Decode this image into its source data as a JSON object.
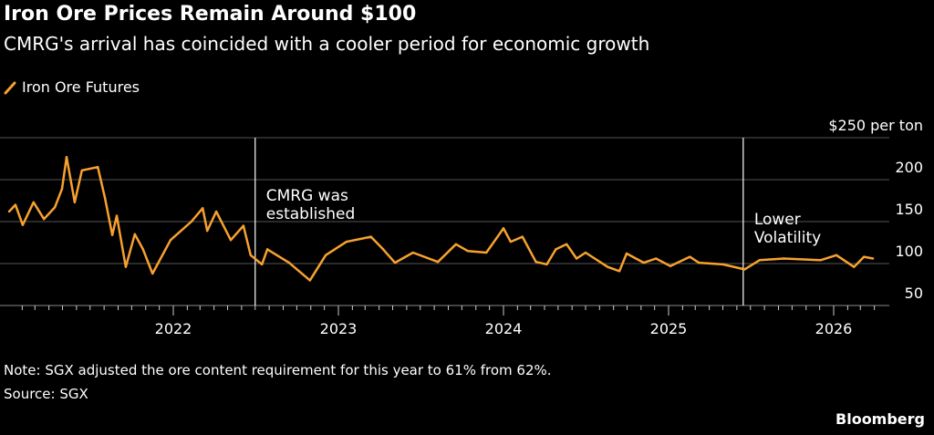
{
  "title": "Iron Ore Prices Remain Around $100",
  "subtitle": "CMRG's arrival has coincided with a cooler period for economic growth",
  "note": "Note: SGX adjusted the ore content requirement for this year to 61% from 62%.",
  "source": "Source: SGX",
  "brand": "Bloomberg",
  "chart_data": {
    "type": "line",
    "title": "Iron Ore Prices Remain Around $100",
    "xlabel": "",
    "ylabel": "",
    "y_unit_label": "$250 per ton",
    "ylim": [
      50,
      250
    ],
    "yticks": [
      50,
      100,
      150,
      200,
      250
    ],
    "ytick_labels": [
      "50",
      "100",
      "150",
      "200",
      "$250 per ton"
    ],
    "xlim": [
      "2021-01-01",
      "2026-04-30"
    ],
    "xtick_labels": [
      "2022",
      "2023",
      "2024",
      "2025",
      "2026"
    ],
    "grid": true,
    "legend": "top-left",
    "colors": {
      "line": "#f7a12f",
      "background": "#000000",
      "grid": "#555555",
      "annotation_line": "#ffffff"
    },
    "series": [
      {
        "name": "Iron Ore Futures",
        "x": [
          "2021-01-03",
          "2021-01-17",
          "2021-02-02",
          "2021-02-26",
          "2021-03-21",
          "2021-04-14",
          "2021-04-30",
          "2021-05-10",
          "2021-05-28",
          "2021-06-13",
          "2021-07-18",
          "2021-08-03",
          "2021-08-19",
          "2021-08-29",
          "2021-09-18",
          "2021-10-08",
          "2021-10-26",
          "2021-11-16",
          "2021-12-26",
          "2022-02-10",
          "2022-03-07",
          "2022-03-17",
          "2022-04-06",
          "2022-05-08",
          "2022-06-05",
          "2022-06-21",
          "2022-07-16",
          "2022-07-28",
          "2022-09-14",
          "2022-10-30",
          "2022-12-04",
          "2023-01-19",
          "2023-03-14",
          "2023-04-10",
          "2023-05-06",
          "2023-06-15",
          "2023-08-09",
          "2023-09-18",
          "2023-10-14",
          "2023-11-24",
          "2024-01-01",
          "2024-01-17",
          "2024-02-12",
          "2024-03-13",
          "2024-04-06",
          "2024-04-26",
          "2024-05-20",
          "2024-06-11",
          "2024-07-01",
          "2024-08-19",
          "2024-09-14",
          "2024-09-30",
          "2024-11-07",
          "2024-12-04",
          "2025-01-05",
          "2025-02-17",
          "2025-03-09",
          "2025-05-01",
          "2025-06-18",
          "2025-07-21",
          "2025-09-13",
          "2025-12-03",
          "2026-01-07",
          "2026-02-15",
          "2026-03-09",
          "2026-03-29"
        ],
        "y": [
          162,
          170,
          146,
          173,
          153,
          167,
          189,
          227,
          173,
          211,
          215,
          178,
          134,
          157,
          96,
          135,
          117,
          88,
          128,
          150,
          166,
          139,
          162,
          128,
          145,
          110,
          99,
          117,
          101,
          80,
          110,
          126,
          132,
          117,
          101,
          113,
          102,
          123,
          115,
          113,
          142,
          126,
          132,
          102,
          99,
          117,
          123,
          106,
          113,
          96,
          91,
          112,
          101,
          106,
          97,
          108,
          101,
          99,
          93,
          104,
          106,
          104,
          110,
          96,
          108,
          106
        ]
      }
    ],
    "annotations": [
      {
        "date": "2022-07-01",
        "label_lines": [
          "CMRG was",
          "established"
        ]
      },
      {
        "date": "2025-06-15",
        "label_lines": [
          "Lower",
          "Volatility"
        ]
      }
    ]
  }
}
